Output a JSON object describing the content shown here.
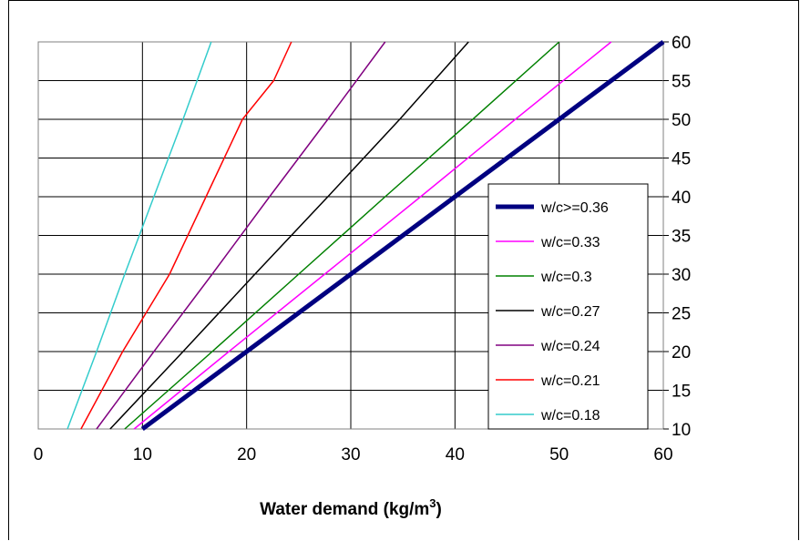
{
  "chart_data": {
    "type": "line",
    "xlabel": "Water demand (kg/m",
    "xlabel_superscript": "3",
    "xlabel_suffix": ")",
    "ylabel": "",
    "xlim": [
      0,
      60
    ],
    "ylim": [
      10,
      60
    ],
    "x_ticks": [
      "0",
      "10",
      "20",
      "30",
      "40",
      "50",
      "60"
    ],
    "y_ticks": [
      "10",
      "15",
      "20",
      "25",
      "30",
      "35",
      "40",
      "45",
      "50",
      "55",
      "60"
    ],
    "y_axis_side": "right",
    "grid": true,
    "legend_position": "right",
    "series": [
      {
        "name": "w/c>=0.36",
        "color": "#000080",
        "points": [
          [
            10,
            10
          ],
          [
            20,
            20
          ],
          [
            30,
            30
          ],
          [
            40,
            40
          ],
          [
            50,
            50
          ],
          [
            60,
            60
          ]
        ]
      },
      {
        "name": "w/c=0.33",
        "color": "#FF00FF",
        "points": [
          [
            9.2,
            10
          ],
          [
            18.3,
            20
          ],
          [
            27.5,
            30
          ],
          [
            36.7,
            40
          ],
          [
            45.8,
            50
          ],
          [
            55,
            60
          ]
        ]
      },
      {
        "name": "w/c=0.3",
        "color": "#008000",
        "points": [
          [
            8.3,
            10
          ],
          [
            16.7,
            20
          ],
          [
            25,
            30
          ],
          [
            33.3,
            40
          ],
          [
            41.7,
            50
          ],
          [
            50,
            60
          ]
        ]
      },
      {
        "name": "w/c=0.27",
        "color": "#000000",
        "points": [
          [
            6.9,
            10
          ],
          [
            13.9,
            20
          ],
          [
            20.8,
            30
          ],
          [
            27.8,
            40
          ],
          [
            34.7,
            50
          ],
          [
            41.3,
            60
          ]
        ]
      },
      {
        "name": "w/c=0.24",
        "color": "#800080",
        "points": [
          [
            5.6,
            10
          ],
          [
            11.1,
            20
          ],
          [
            16.7,
            30
          ],
          [
            22.2,
            40
          ],
          [
            27.8,
            50
          ],
          [
            33.3,
            60
          ]
        ]
      },
      {
        "name": "w/c=0.21",
        "color": "#FF0000",
        "points": [
          [
            4.1,
            10
          ],
          [
            8.1,
            20
          ],
          [
            12.6,
            30
          ],
          [
            16.1,
            40
          ],
          [
            19.6,
            50
          ],
          [
            22.6,
            55
          ],
          [
            24.3,
            60
          ]
        ]
      },
      {
        "name": "w/c=0.18",
        "color": "#33CCCC",
        "points": [
          [
            2.8,
            10
          ],
          [
            5.6,
            20
          ],
          [
            8.3,
            30
          ],
          [
            11.1,
            40
          ],
          [
            13.9,
            50
          ],
          [
            16.6,
            60
          ]
        ]
      }
    ]
  }
}
